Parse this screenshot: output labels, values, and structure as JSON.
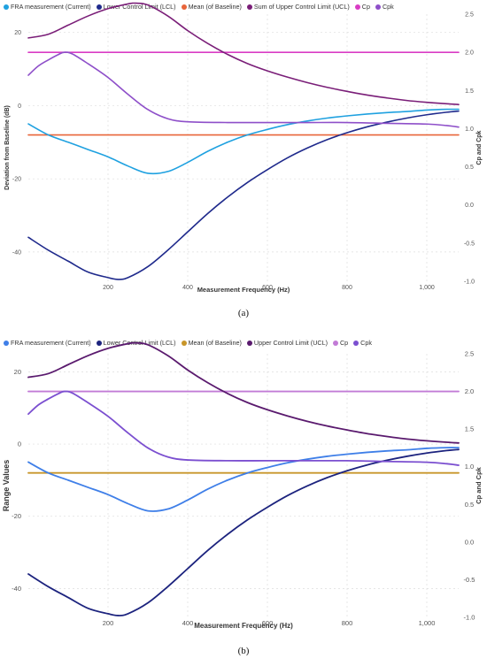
{
  "chart_data": [
    {
      "type": "line",
      "caption": "(a)",
      "xlabel": "Measurement Frequency (Hz)",
      "ylabel": "Deviation from Baseline (dB)",
      "y2label": "Cp and Cpk",
      "xlim": [
        0,
        1080
      ],
      "ylim": [
        -48,
        25
      ],
      "y2lim": [
        -1.0,
        2.5
      ],
      "xticks": [
        200,
        400,
        600,
        800,
        1000
      ],
      "xtick_labels": [
        "200",
        "400",
        "600",
        "800",
        "1,000"
      ],
      "yticks": [
        20,
        0,
        -20,
        -40
      ],
      "y2ticks": [
        2.5,
        2.0,
        1.5,
        1.0,
        0.5,
        0.0,
        -0.5,
        -1.0
      ],
      "y2tick_labels": [
        "2.5",
        "2.0",
        "1.5",
        "1.0",
        "0.5",
        "0.0",
        "-0.5",
        "-1.0"
      ],
      "grid": true,
      "legend_position": "top",
      "series": [
        {
          "name": "FRA measurement (Current)",
          "color": "#1fa1e0",
          "axis": "y",
          "x": [
            0,
            50,
            100,
            150,
            200,
            250,
            300,
            350,
            400,
            450,
            500,
            550,
            600,
            650,
            700,
            750,
            800,
            850,
            900,
            950,
            1000,
            1050,
            1080
          ],
          "y": [
            -5,
            -8,
            -10,
            -12,
            -14,
            -16.5,
            -18.5,
            -18,
            -15.5,
            -12.5,
            -10,
            -8,
            -6.5,
            -5.2,
            -4.2,
            -3.4,
            -2.8,
            -2.3,
            -1.9,
            -1.6,
            -1.2,
            -1,
            -1
          ]
        },
        {
          "name": "Lower Control Limit (LCL)",
          "color": "#1f2a8c",
          "axis": "y",
          "x": [
            0,
            50,
            100,
            150,
            200,
            225,
            250,
            300,
            350,
            400,
            450,
            500,
            550,
            600,
            650,
            700,
            750,
            800,
            850,
            900,
            950,
            1000,
            1050,
            1080
          ],
          "y": [
            -36,
            -39.5,
            -42.5,
            -45.5,
            -47,
            -47.5,
            -47,
            -44,
            -39.5,
            -34.5,
            -29.5,
            -25,
            -21,
            -17.5,
            -14.3,
            -11.6,
            -9.3,
            -7.4,
            -5.8,
            -4.5,
            -3.4,
            -2.5,
            -1.8,
            -1.5
          ]
        },
        {
          "name": "Mean (of Baseline)",
          "color": "#e8653a",
          "axis": "y",
          "x": [
            0,
            1080
          ],
          "y": [
            -8,
            -8
          ]
        },
        {
          "name": "Sum of Upper Control Limit (UCL)",
          "color": "#7a1e78",
          "axis": "y",
          "x": [
            0,
            50,
            100,
            150,
            200,
            250,
            270,
            300,
            350,
            400,
            450,
            500,
            550,
            600,
            650,
            700,
            750,
            800,
            850,
            900,
            950,
            1000,
            1050,
            1080
          ],
          "y": [
            18.5,
            19.5,
            22,
            24.5,
            26.5,
            27.8,
            28,
            27.5,
            24.5,
            20.5,
            17,
            14,
            11.5,
            9.5,
            7.8,
            6.3,
            5,
            3.9,
            2.9,
            2.1,
            1.4,
            0.9,
            0.5,
            0.3
          ]
        },
        {
          "name": "Cp",
          "color": "#d93cc4",
          "axis": "y2",
          "x": [
            0,
            1080
          ],
          "y": [
            2.0,
            2.0
          ]
        },
        {
          "name": "Cpk",
          "color": "#8e4fc9",
          "axis": "y2",
          "x": [
            0,
            25,
            50,
            75,
            90,
            110,
            150,
            200,
            250,
            300,
            350,
            400,
            500,
            600,
            700,
            800,
            900,
            1000,
            1050,
            1080
          ],
          "y": [
            1.7,
            1.82,
            1.9,
            1.97,
            2.0,
            1.98,
            1.85,
            1.67,
            1.45,
            1.25,
            1.13,
            1.09,
            1.08,
            1.08,
            1.08,
            1.08,
            1.07,
            1.06,
            1.04,
            1.02
          ]
        }
      ]
    },
    {
      "type": "line",
      "caption": "(b)",
      "xlabel": "Measurement Frequency (Hz)",
      "ylabel": "Range Values",
      "y2label": "Cp and Cpk",
      "xlim": [
        0,
        1080
      ],
      "ylim": [
        -48,
        25
      ],
      "y2lim": [
        -1.0,
        2.5
      ],
      "xticks": [
        200,
        400,
        600,
        800,
        1000
      ],
      "xtick_labels": [
        "200",
        "400",
        "600",
        "800",
        "1,000"
      ],
      "yticks": [
        20,
        0,
        -20,
        -40
      ],
      "y2ticks": [
        2.5,
        2.0,
        1.5,
        1.0,
        0.5,
        0.0,
        -0.5,
        -1.0
      ],
      "y2tick_labels": [
        "2.5",
        "2.0",
        "1.5",
        "1.0",
        "0.5",
        "0.0",
        "-0.5",
        "-1.0"
      ],
      "grid": true,
      "legend_position": "top",
      "series": [
        {
          "name": "FRA measurement (Current)",
          "color": "#3f7fe8",
          "axis": "y",
          "x": [
            0,
            50,
            100,
            150,
            200,
            250,
            300,
            350,
            400,
            450,
            500,
            550,
            600,
            650,
            700,
            750,
            800,
            850,
            900,
            950,
            1000,
            1050,
            1080
          ],
          "y": [
            -5,
            -8,
            -10,
            -12,
            -14,
            -16.5,
            -18.5,
            -18,
            -15.5,
            -12.5,
            -10,
            -8,
            -6.5,
            -5.2,
            -4.2,
            -3.4,
            -2.8,
            -2.3,
            -1.9,
            -1.6,
            -1.2,
            -1,
            -1
          ]
        },
        {
          "name": "Lower Control Limit (LCL)",
          "color": "#1c237e",
          "axis": "y",
          "x": [
            0,
            50,
            100,
            150,
            200,
            225,
            250,
            300,
            350,
            400,
            450,
            500,
            550,
            600,
            650,
            700,
            750,
            800,
            850,
            900,
            950,
            1000,
            1050,
            1080
          ],
          "y": [
            -36,
            -39.5,
            -42.5,
            -45.5,
            -47,
            -47.5,
            -47,
            -44,
            -39.5,
            -34.5,
            -29.5,
            -25,
            -21,
            -17.5,
            -14.3,
            -11.6,
            -9.3,
            -7.4,
            -5.8,
            -4.5,
            -3.4,
            -2.5,
            -1.8,
            -1.5
          ]
        },
        {
          "name": "Mean (of Baseline)",
          "color": "#c8962a",
          "axis": "y",
          "x": [
            0,
            1080
          ],
          "y": [
            -8,
            -8
          ]
        },
        {
          "name": "Upper Control Limit (UCL)",
          "color": "#5a1a6e",
          "axis": "y",
          "x": [
            0,
            50,
            100,
            150,
            200,
            250,
            270,
            300,
            350,
            400,
            450,
            500,
            550,
            600,
            650,
            700,
            750,
            800,
            850,
            900,
            950,
            1000,
            1050,
            1080
          ],
          "y": [
            18.5,
            19.5,
            22,
            24.5,
            26.5,
            27.8,
            28,
            27.5,
            24.5,
            20.5,
            17,
            14,
            11.5,
            9.5,
            7.8,
            6.3,
            5,
            3.9,
            2.9,
            2.1,
            1.4,
            0.9,
            0.5,
            0.3
          ]
        },
        {
          "name": "Cp",
          "color": "#c27bd6",
          "axis": "y2",
          "x": [
            0,
            1080
          ],
          "y": [
            2.0,
            2.0
          ]
        },
        {
          "name": "Cpk",
          "color": "#7b4fd0",
          "axis": "y2",
          "x": [
            0,
            25,
            50,
            75,
            90,
            110,
            150,
            200,
            250,
            300,
            350,
            400,
            500,
            600,
            700,
            800,
            900,
            1000,
            1050,
            1080
          ],
          "y": [
            1.7,
            1.82,
            1.9,
            1.97,
            2.0,
            1.98,
            1.85,
            1.67,
            1.45,
            1.25,
            1.13,
            1.09,
            1.08,
            1.08,
            1.08,
            1.08,
            1.07,
            1.06,
            1.04,
            1.02
          ]
        }
      ]
    }
  ]
}
